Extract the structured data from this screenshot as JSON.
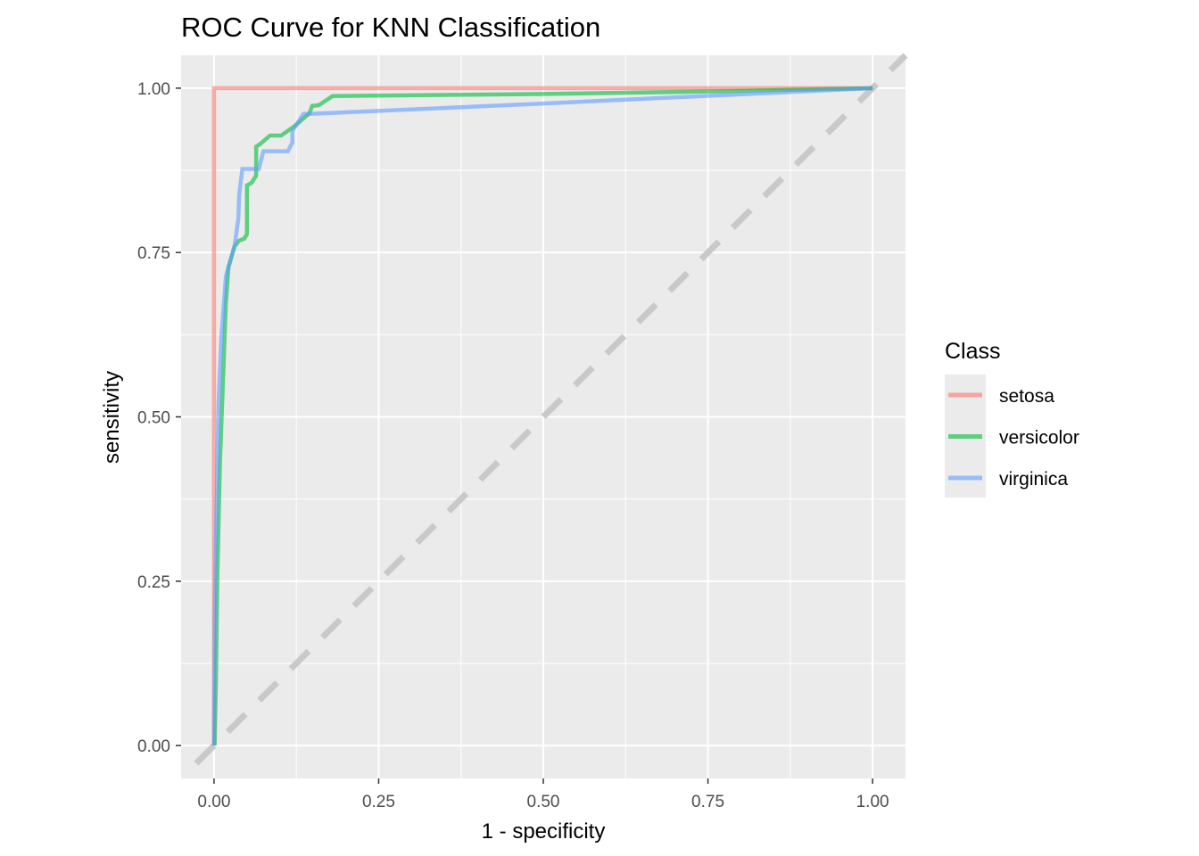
{
  "chart_data": {
    "type": "line",
    "title": "ROC Curve for KNN Classification",
    "xlabel": "1 - specificity",
    "ylabel": "sensitivity",
    "xlim": [
      -0.05,
      1.05
    ],
    "ylim": [
      -0.05,
      1.05
    ],
    "grid": true,
    "x_ticks": [
      "0.00",
      "0.25",
      "0.50",
      "0.75",
      "1.00"
    ],
    "y_ticks": [
      "0.00",
      "0.25",
      "0.50",
      "0.75",
      "1.00"
    ],
    "tick_values": [
      0,
      0.25,
      0.5,
      0.75,
      1
    ],
    "legend": {
      "title": "Class",
      "placement": "right"
    },
    "reference_line": {
      "type": "diagonal",
      "style": "dashed",
      "color": "#c9c9c9"
    },
    "series": [
      {
        "name": "setosa",
        "color": "#F8766D",
        "x": [
          0,
          0,
          1
        ],
        "y": [
          0,
          1,
          1
        ]
      },
      {
        "name": "versicolor",
        "color": "#00BA38",
        "x": [
          0.001,
          0.003,
          0.005,
          0.009,
          0.014,
          0.018,
          0.022,
          0.031,
          0.038,
          0.046,
          0.05,
          0.05,
          0.057,
          0.064,
          0.064,
          0.07,
          0.085,
          0.102,
          0.122,
          0.145,
          0.149,
          0.159,
          0.18,
          0.488,
          0.759,
          1
        ],
        "y": [
          0,
          0.104,
          0.253,
          0.43,
          0.565,
          0.673,
          0.728,
          0.759,
          0.768,
          0.771,
          0.778,
          0.852,
          0.856,
          0.867,
          0.911,
          0.915,
          0.928,
          0.928,
          0.942,
          0.962,
          0.973,
          0.974,
          0.988,
          0.991,
          0.995,
          1
        ]
      },
      {
        "name": "virginica",
        "color": "#619CFF",
        "x": [
          0,
          0.001,
          0.004,
          0.007,
          0.011,
          0.015,
          0.018,
          0.031,
          0.037,
          0.038,
          0.043,
          0.068,
          0.075,
          0.112,
          0.119,
          0.119,
          0.136,
          0.149,
          0.488,
          1
        ],
        "y": [
          0,
          0.186,
          0.375,
          0.524,
          0.619,
          0.673,
          0.714,
          0.759,
          0.802,
          0.836,
          0.877,
          0.877,
          0.904,
          0.904,
          0.917,
          0.935,
          0.961,
          0.961,
          0.976,
          1
        ]
      }
    ]
  }
}
